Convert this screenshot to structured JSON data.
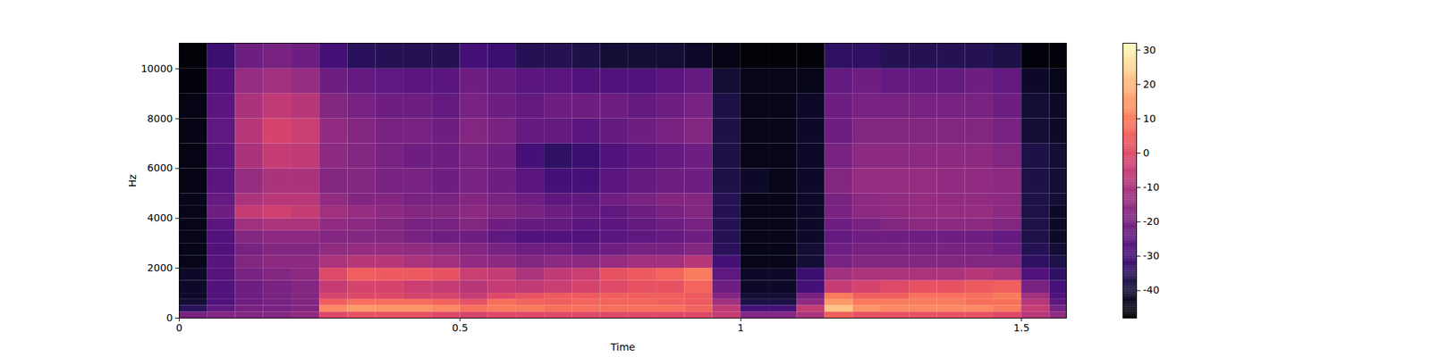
{
  "chart_data": {
    "type": "heatmap",
    "x_label": "Time",
    "y_label": "Hz",
    "color": "magma",
    "xlim": [
      0,
      1.58
    ],
    "ylim": [
      0,
      11025
    ],
    "xticks": [
      0,
      0.5,
      1,
      1.5
    ],
    "yticks": [
      0,
      2000,
      4000,
      6000,
      8000,
      10000
    ],
    "x_bins": [
      0,
      0.05,
      0.1,
      0.15,
      0.2,
      0.25,
      0.3,
      0.35,
      0.4,
      0.45,
      0.5,
      0.55,
      0.6,
      0.65,
      0.7,
      0.75,
      0.8,
      0.85,
      0.9,
      0.95,
      1.0,
      1.05,
      1.1,
      1.15,
      1.2,
      1.25,
      1.3,
      1.35,
      1.4,
      1.45,
      1.5,
      1.55,
      1.58
    ],
    "y_bins": [
      0,
      250,
      500,
      750,
      1000,
      1500,
      2000,
      2500,
      3000,
      3500,
      4000,
      4500,
      5000,
      6000,
      7000,
      8000,
      9000,
      10000,
      11025
    ],
    "cells": [
      [
        -20,
        -35,
        -40,
        -42,
        -42,
        -42,
        -44,
        -44,
        -44,
        -44,
        -44,
        -44,
        -45,
        -45,
        -45,
        -45,
        -46,
        -47
      ],
      [
        -18,
        -25,
        -28,
        -28,
        -28,
        -27,
        -27,
        -28,
        -28,
        -26,
        -22,
        -24,
        -26,
        -26,
        -25,
        -26,
        -28,
        -32
      ],
      [
        -18,
        -20,
        -22,
        -22,
        -22,
        -20,
        -18,
        -20,
        -18,
        -12,
        -5,
        -10,
        -14,
        -10,
        -8,
        -10,
        -14,
        -22
      ],
      [
        -18,
        -20,
        -20,
        -20,
        -20,
        -18,
        -16,
        -18,
        -16,
        -10,
        -3,
        -8,
        -10,
        -5,
        -2,
        -6,
        -12,
        -20
      ],
      [
        -15,
        -18,
        -18,
        -18,
        -18,
        -16,
        -16,
        -18,
        -16,
        -10,
        -5,
        -8,
        -10,
        -6,
        -4,
        -8,
        -14,
        -22
      ],
      [
        0,
        12,
        5,
        -2,
        -5,
        0,
        -10,
        -15,
        -18,
        -15,
        -12,
        -15,
        -18,
        -16,
        -15,
        -18,
        -22,
        -30
      ],
      [
        2,
        15,
        8,
        0,
        -2,
        5,
        -8,
        -14,
        -18,
        -16,
        -14,
        -18,
        -18,
        -18,
        -18,
        -20,
        -24,
        -35
      ],
      [
        2,
        14,
        8,
        0,
        -2,
        4,
        -8,
        -14,
        -18,
        -18,
        -16,
        -18,
        -20,
        -20,
        -20,
        -22,
        -25,
        -36
      ],
      [
        2,
        14,
        8,
        -2,
        -4,
        4,
        -10,
        -15,
        -20,
        -20,
        -18,
        -20,
        -20,
        -22,
        -20,
        -22,
        -26,
        -36
      ],
      [
        0,
        12,
        6,
        -2,
        -5,
        2,
        -12,
        -16,
        -22,
        -20,
        -18,
        -20,
        -22,
        -22,
        -22,
        -24,
        -26,
        -36
      ],
      [
        -2,
        8,
        2,
        -5,
        -8,
        -4,
        -15,
        -18,
        -22,
        -18,
        -16,
        -18,
        -20,
        -20,
        -18,
        -20,
        -22,
        -30
      ],
      [
        0,
        10,
        8,
        0,
        -5,
        -5,
        -16,
        -20,
        -25,
        -22,
        -18,
        -20,
        -22,
        -22,
        -20,
        -22,
        -24,
        -32
      ],
      [
        0,
        10,
        6,
        2,
        -6,
        -10,
        -18,
        -22,
        -28,
        -24,
        -20,
        -22,
        -26,
        -30,
        -24,
        -24,
        -26,
        -36
      ],
      [
        0,
        8,
        5,
        4,
        -4,
        -6,
        -16,
        -22,
        -28,
        -24,
        -22,
        -25,
        -30,
        -34,
        -24,
        -22,
        -26,
        -36
      ],
      [
        0,
        8,
        6,
        4,
        -2,
        -4,
        -16,
        -24,
        -28,
        -26,
        -24,
        -25,
        -30,
        -32,
        -26,
        -22,
        -28,
        -38
      ],
      [
        0,
        8,
        6,
        5,
        0,
        2,
        -14,
        -22,
        -26,
        -26,
        -25,
        -22,
        -26,
        -28,
        -24,
        -22,
        -28,
        -40
      ],
      [
        0,
        8,
        6,
        5,
        2,
        4,
        -12,
        -20,
        -25,
        -24,
        -22,
        -20,
        -24,
        -26,
        -22,
        -24,
        -28,
        -40
      ],
      [
        0,
        8,
        5,
        5,
        2,
        6,
        -12,
        -20,
        -24,
        -22,
        -20,
        -18,
        -22,
        -24,
        -20,
        -22,
        -26,
        -40
      ],
      [
        0,
        6,
        4,
        4,
        6,
        10,
        -8,
        -18,
        -22,
        -20,
        -18,
        -18,
        -22,
        -22,
        -18,
        -20,
        -24,
        -42
      ],
      [
        -5,
        -6,
        -12,
        -18,
        -22,
        -25,
        -30,
        -35,
        -36,
        -36,
        -36,
        -36,
        -38,
        -38,
        -38,
        -38,
        -40,
        -45
      ],
      [
        -18,
        -30,
        -38,
        -40,
        -42,
        -42,
        -44,
        -44,
        -44,
        -44,
        -44,
        -44,
        -42,
        -44,
        -44,
        -44,
        -44,
        -47
      ],
      [
        -18,
        -30,
        -38,
        -40,
        -42,
        -42,
        -44,
        -44,
        -44,
        -44,
        -44,
        -44,
        -44,
        -44,
        -44,
        -44,
        -44,
        -47
      ],
      [
        -10,
        -5,
        -15,
        -20,
        -30,
        -32,
        -40,
        -40,
        -42,
        -42,
        -42,
        -42,
        -42,
        -42,
        -42,
        -42,
        -44,
        -47
      ],
      [
        5,
        22,
        15,
        10,
        -5,
        -12,
        -20,
        -22,
        -24,
        -22,
        -20,
        -20,
        -18,
        -20,
        -22,
        -22,
        -24,
        -34
      ],
      [
        2,
        14,
        10,
        5,
        -2,
        -10,
        -18,
        -20,
        -22,
        -20,
        -16,
        -16,
        -14,
        -16,
        -18,
        -20,
        -22,
        -34
      ],
      [
        2,
        12,
        10,
        5,
        0,
        -10,
        -18,
        -20,
        -22,
        -18,
        -15,
        -15,
        -14,
        -16,
        -18,
        -20,
        -24,
        -36
      ],
      [
        2,
        12,
        10,
        8,
        2,
        -10,
        -18,
        -20,
        -22,
        -16,
        -14,
        -14,
        -14,
        -16,
        -18,
        -20,
        -24,
        -36
      ],
      [
        2,
        12,
        10,
        8,
        2,
        -10,
        -18,
        -20,
        -22,
        -16,
        -14,
        -15,
        -15,
        -16,
        -18,
        -20,
        -24,
        -36
      ],
      [
        2,
        12,
        8,
        8,
        4,
        -8,
        -18,
        -20,
        -22,
        -16,
        -14,
        -15,
        -15,
        -16,
        -18,
        -20,
        -22,
        -36
      ],
      [
        0,
        10,
        8,
        10,
        5,
        -10,
        -18,
        -22,
        -24,
        -18,
        -16,
        -16,
        -16,
        -18,
        -20,
        -22,
        -24,
        -38
      ],
      [
        -8,
        -5,
        -8,
        -12,
        -20,
        -28,
        -34,
        -36,
        -38,
        -38,
        -38,
        -38,
        -38,
        -38,
        -40,
        -40,
        -42,
        -46
      ],
      [
        -15,
        -20,
        -25,
        -28,
        -30,
        -34,
        -38,
        -40,
        -42,
        -42,
        -42,
        -40,
        -40,
        -40,
        -42,
        -42,
        -44,
        -47
      ]
    ],
    "colorbar": {
      "range": [
        -48,
        32
      ],
      "ticks": [
        -40,
        -30,
        -20,
        -10,
        0,
        10,
        20,
        30
      ]
    }
  }
}
